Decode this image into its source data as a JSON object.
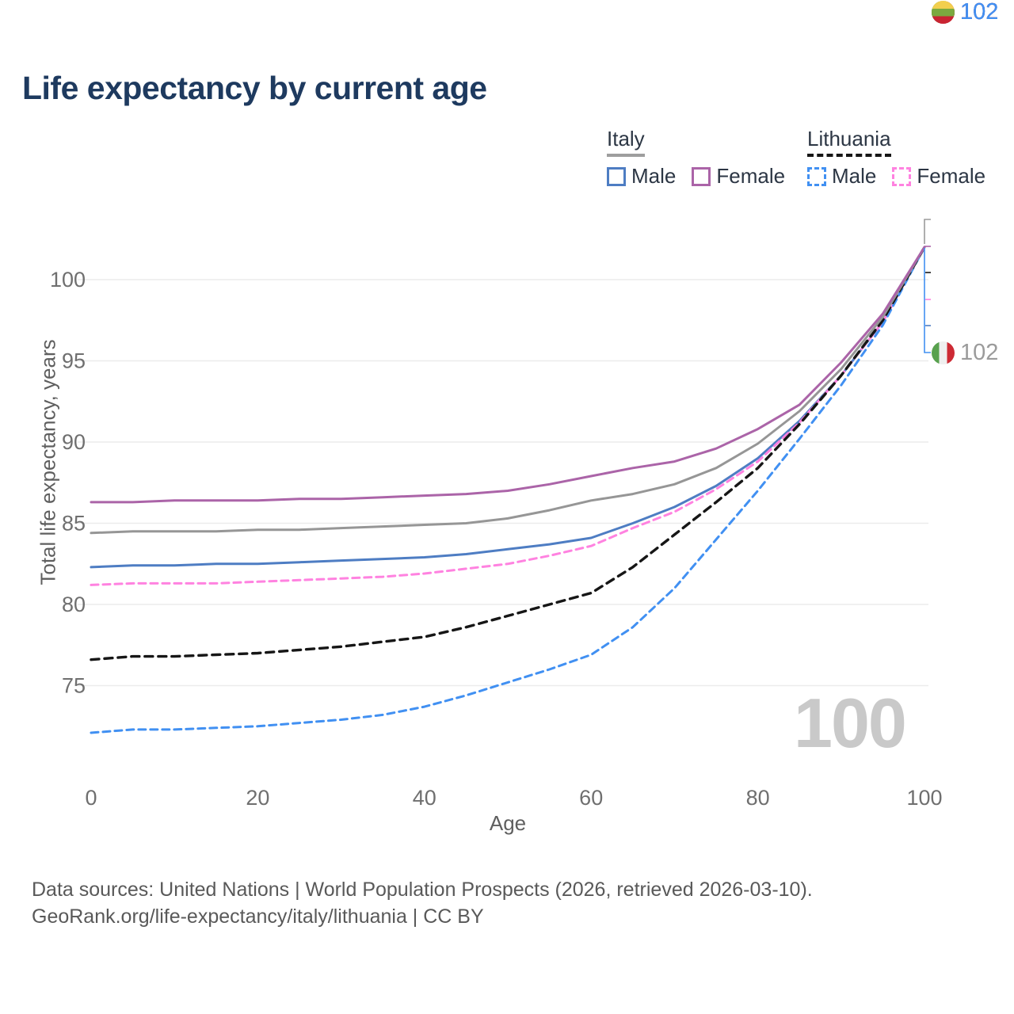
{
  "title": "Life expectancy by current age",
  "legend": {
    "groups": [
      {
        "label": "Italy",
        "line_style": "solid",
        "items": [
          {
            "label": "Male",
            "color": "#4e7dc3"
          },
          {
            "label": "Female",
            "color": "#ab64a8"
          }
        ]
      },
      {
        "label": "Lithuania",
        "line_style": "dashed",
        "items": [
          {
            "label": "Male",
            "color": "#4190f2"
          },
          {
            "label": "Female",
            "color": "#ff82e0"
          }
        ]
      }
    ]
  },
  "end_labels": [
    {
      "series": "Italy",
      "value": "102",
      "flag": "italy",
      "color": "#9b9b9b"
    },
    {
      "series": "Italy Female",
      "value": "102",
      "flag": "italy",
      "color": "#ab64a8"
    },
    {
      "series": "Lithuania",
      "value": "102",
      "flag": "lithuania",
      "color": "#161616"
    },
    {
      "series": "Lithuania Female",
      "value": "102",
      "flag": "lithuania",
      "color": "#ff82e0"
    },
    {
      "series": "Italy Male",
      "value": "102",
      "flag": "italy",
      "color": "#4e7dc3"
    },
    {
      "series": "Lithuania Male",
      "value": "102",
      "flag": "lithuania",
      "color": "#4190f2"
    }
  ],
  "watermark": "100",
  "footer": {
    "line1": "Data sources: United Nations | World Population Prospects (2026, retrieved 2026-03-10).",
    "line2": "GeoRank.org/life-expectancy/italy/lithuania | CC BY"
  },
  "chart_data": {
    "type": "line",
    "title": "Life expectancy by current age",
    "xlabel": "Age",
    "ylabel": "Total life expectancy, years",
    "x": [
      0,
      5,
      10,
      15,
      20,
      25,
      30,
      35,
      40,
      45,
      50,
      55,
      60,
      65,
      70,
      75,
      80,
      85,
      90,
      95,
      100
    ],
    "x_ticks": [
      0,
      20,
      40,
      60,
      80,
      100
    ],
    "y_ticks": [
      75,
      80,
      85,
      90,
      95,
      100
    ],
    "xlim": [
      0,
      100
    ],
    "ylim": [
      71,
      103.5
    ],
    "grid": "horizontal",
    "legend_position": "top-right",
    "series": [
      {
        "name": "Italy Male",
        "country": "Italy",
        "sex": "male",
        "color": "#4e7dc3",
        "dash": false,
        "values": [
          82.3,
          82.4,
          82.4,
          82.5,
          82.5,
          82.6,
          82.7,
          82.8,
          82.9,
          83.1,
          83.4,
          83.7,
          84.1,
          85.0,
          86.0,
          87.3,
          89.0,
          91.3,
          94.1,
          97.4,
          102
        ]
      },
      {
        "name": "Lithuania Female",
        "country": "Lithuania",
        "sex": "female",
        "color": "#ff82e0",
        "dash": true,
        "values": [
          81.2,
          81.3,
          81.3,
          81.3,
          81.4,
          81.5,
          81.6,
          81.7,
          81.9,
          82.2,
          82.5,
          83.0,
          83.6,
          84.7,
          85.7,
          87.1,
          88.8,
          91.2,
          94.1,
          97.4,
          102
        ]
      },
      {
        "name": "Lithuania Male",
        "country": "Lithuania",
        "sex": "male",
        "color": "#4190f2",
        "dash": true,
        "values": [
          72.1,
          72.3,
          72.3,
          72.4,
          72.5,
          72.7,
          72.9,
          73.2,
          73.7,
          74.4,
          75.2,
          76.0,
          76.9,
          78.6,
          81.0,
          84.0,
          87.0,
          90.2,
          93.5,
          97.2,
          102
        ]
      },
      {
        "name": "Lithuania",
        "country": "Lithuania",
        "sex": "all",
        "color": "#161616",
        "dash": true,
        "values": [
          76.6,
          76.8,
          76.8,
          76.9,
          77.0,
          77.2,
          77.4,
          77.7,
          78.0,
          78.6,
          79.3,
          80.0,
          80.7,
          82.3,
          84.3,
          86.3,
          88.4,
          91.1,
          94.1,
          97.5,
          102
        ]
      },
      {
        "name": "Italy",
        "country": "Italy",
        "sex": "all",
        "color": "#969696",
        "dash": false,
        "values": [
          84.4,
          84.5,
          84.5,
          84.5,
          84.6,
          84.6,
          84.7,
          84.8,
          84.9,
          85.0,
          85.3,
          85.8,
          86.4,
          86.8,
          87.4,
          88.4,
          89.9,
          91.9,
          94.5,
          97.7,
          102
        ]
      },
      {
        "name": "Italy Female",
        "country": "Italy",
        "sex": "female",
        "color": "#ab64a8",
        "dash": false,
        "values": [
          86.3,
          86.3,
          86.4,
          86.4,
          86.4,
          86.5,
          86.5,
          86.6,
          86.7,
          86.8,
          87.0,
          87.4,
          87.9,
          88.4,
          88.8,
          89.6,
          90.8,
          92.3,
          94.9,
          97.9,
          102
        ]
      }
    ]
  }
}
